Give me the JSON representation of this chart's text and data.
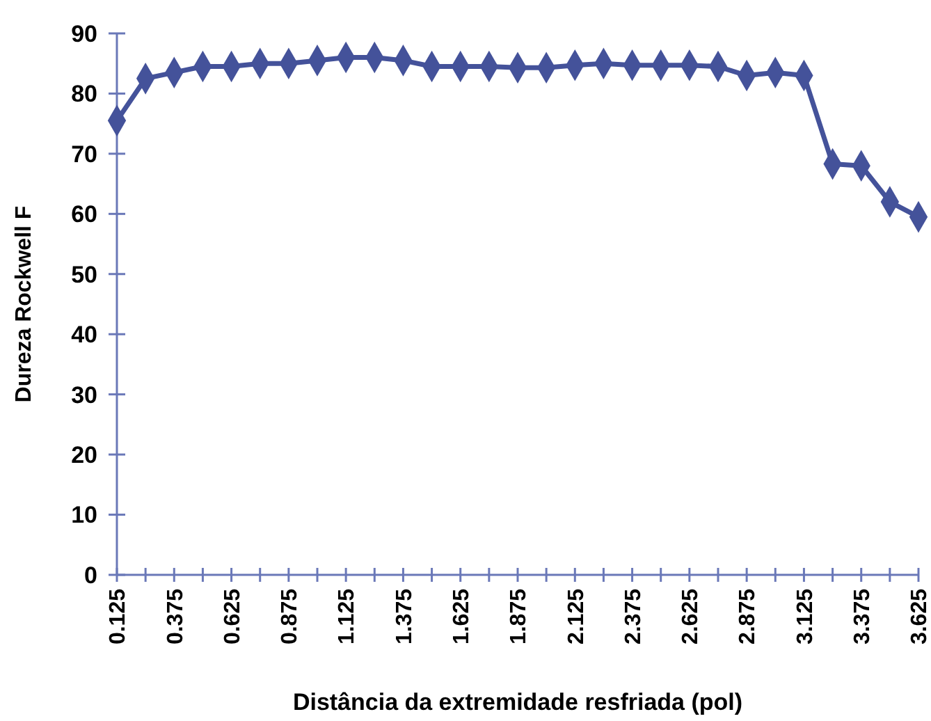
{
  "chart_data": {
    "type": "line",
    "xlabel": "Distância da extremidade resfriada (pol)",
    "ylabel": "Dureza Rockwell F",
    "categories": [
      "0.125",
      null,
      "0.375",
      null,
      "0.625",
      null,
      "0.875",
      null,
      "1.125",
      null,
      "1.375",
      null,
      "1.625",
      null,
      "1.875",
      null,
      "2.125",
      null,
      "2.375",
      null,
      "2.625",
      null,
      "2.875",
      null,
      "3.125",
      null,
      "3.375",
      null,
      "3.625"
    ],
    "series": [
      {
        "color": "#44529a",
        "values": [
          75.5,
          82.5,
          83.5,
          84.5,
          84.5,
          85,
          85,
          85.5,
          86,
          86,
          85.5,
          84.5,
          84.5,
          84.5,
          84.3,
          84.3,
          84.7,
          85,
          84.7,
          84.7,
          84.7,
          84.5,
          83,
          83.5,
          83,
          68.3,
          68,
          62,
          59.5
        ]
      }
    ],
    "ylim": [
      0,
      90
    ],
    "yticks": [
      0,
      10,
      20,
      30,
      40,
      50,
      60,
      70,
      80,
      90
    ],
    "grid": false,
    "marker": "diamond",
    "line_style": "solid"
  }
}
